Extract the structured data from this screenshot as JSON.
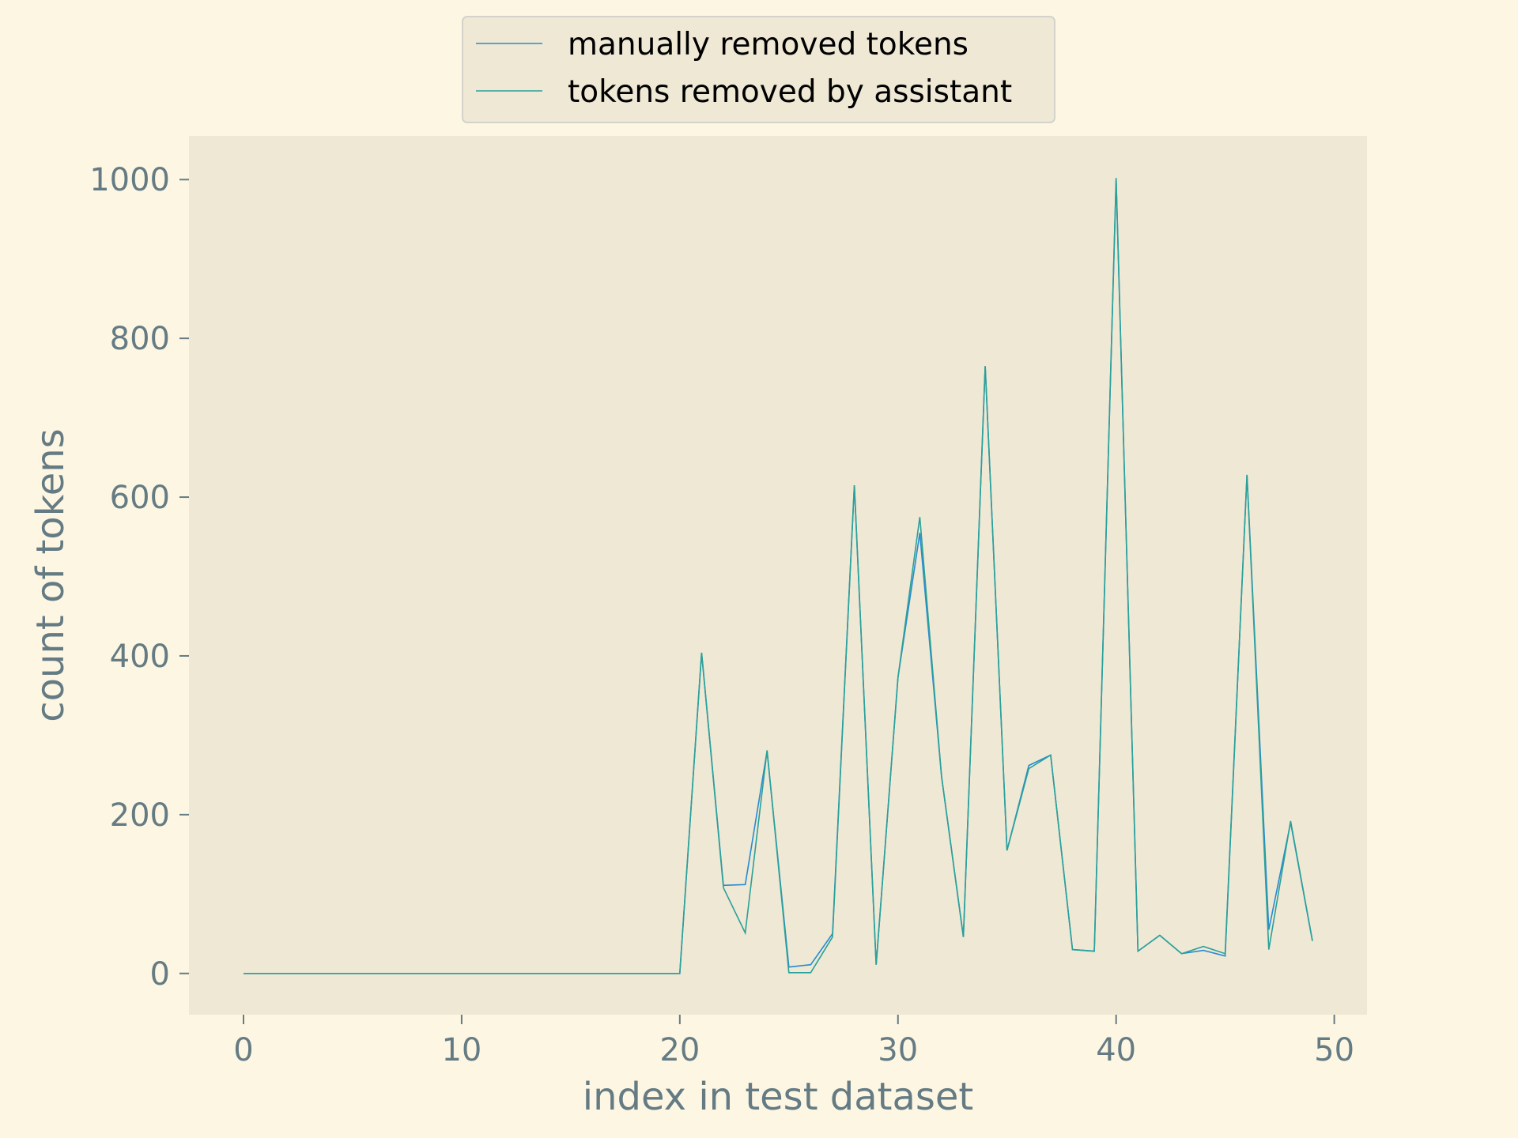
{
  "colors": {
    "background": "#fdf6e3",
    "plot_area": "#eee8d5",
    "axis_text": "#657b83",
    "legend_border": "#d3d3cb"
  },
  "chart_data": {
    "type": "line",
    "title": "",
    "xlabel": "index in test dataset",
    "ylabel": "count of tokens",
    "xlim": [
      -2.5,
      51.5
    ],
    "ylim": [
      -52,
      1055
    ],
    "xticks": [
      0,
      10,
      20,
      30,
      40,
      50
    ],
    "xtick_labels": [
      "0",
      "10",
      "20",
      "30",
      "40",
      "50"
    ],
    "yticks": [
      0,
      200,
      400,
      600,
      800,
      1000
    ],
    "ytick_labels": [
      "0",
      "200",
      "400",
      "600",
      "800",
      "1000"
    ],
    "grid": false,
    "legend_position": "top-center",
    "x": [
      0,
      1,
      2,
      3,
      4,
      5,
      6,
      7,
      8,
      9,
      10,
      11,
      12,
      13,
      14,
      15,
      16,
      17,
      18,
      19,
      20,
      21,
      22,
      23,
      24,
      25,
      26,
      27,
      28,
      29,
      30,
      31,
      32,
      33,
      34,
      35,
      36,
      37,
      38,
      39,
      40,
      41,
      42,
      43,
      44,
      45,
      46,
      47,
      48,
      49
    ],
    "series": [
      {
        "name": "manually removed tokens",
        "color": "#268bd2",
        "values": [
          0,
          0,
          0,
          0,
          0,
          0,
          0,
          0,
          0,
          0,
          0,
          0,
          0,
          0,
          0,
          0,
          0,
          0,
          0,
          0,
          0,
          404,
          111,
          112,
          280,
          8,
          11,
          50,
          615,
          11,
          373,
          555,
          248,
          46,
          765,
          155,
          262,
          275,
          30,
          28,
          1000,
          28,
          48,
          25,
          29,
          22,
          628,
          55,
          190,
          41
        ]
      },
      {
        "name": "tokens removed by assistant",
        "color": "#2aa198",
        "values": [
          0,
          0,
          0,
          0,
          0,
          0,
          0,
          0,
          0,
          0,
          0,
          0,
          0,
          0,
          0,
          0,
          0,
          0,
          0,
          0,
          0,
          404,
          108,
          51,
          281,
          1,
          1,
          46,
          615,
          11,
          373,
          575,
          248,
          46,
          765,
          155,
          258,
          275,
          30,
          28,
          1002,
          28,
          48,
          25,
          34,
          25,
          628,
          30,
          192,
          41
        ]
      }
    ]
  }
}
